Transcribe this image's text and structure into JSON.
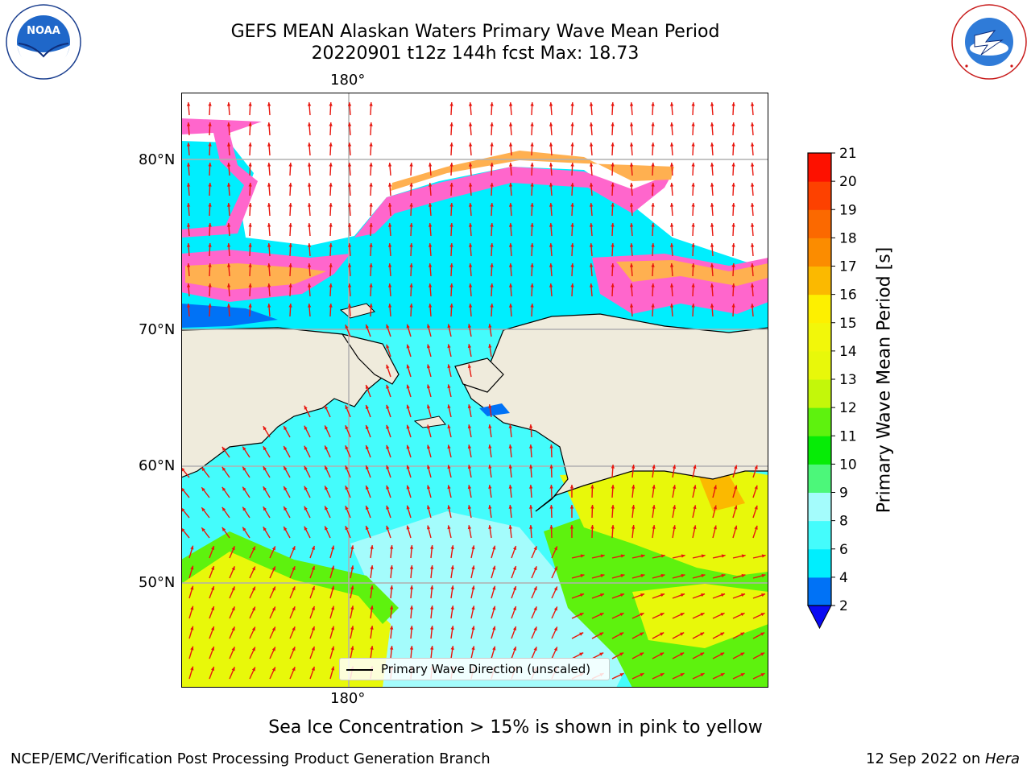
{
  "title": {
    "line1": "GEFS MEAN Alaskan Waters Primary Wave Mean Period",
    "line2": "20220901 t12z 144h fcst   Max: 18.73"
  },
  "logos": {
    "left": {
      "name": "NOAA",
      "ring_text": "NATIONAL OCEANIC AND ATMOSPHERIC ADMINISTRATION",
      "bottom_text": "U.S. DEPARTMENT OF COMMERCE"
    },
    "right": {
      "name": "NATIONAL WEATHER SERVICE"
    }
  },
  "map": {
    "lon_label_top": "180°",
    "lon_label_bottom": "180°",
    "lat_labels": [
      "80°N",
      "70°N",
      "60°N",
      "50°N"
    ],
    "land_color": "#efebdc",
    "vector_color": "#e8150d",
    "legend_text": "Primary Wave Direction (unscaled)"
  },
  "colorbar": {
    "label": "Primary Wave Mean Period [s]",
    "ticks": [
      "2",
      "4",
      "6",
      "8",
      "9",
      "10",
      "11",
      "12",
      "13",
      "14",
      "15",
      "16",
      "17",
      "18",
      "19",
      "20",
      "21"
    ],
    "colors": [
      "#0072f6",
      "#00eefe",
      "#44fcfc",
      "#a4fcfc",
      "#4cf77a",
      "#06ec06",
      "#5ef20e",
      "#c3f70a",
      "#e8f80a",
      "#f2f70a",
      "#fdf000",
      "#fbb900",
      "#fb8c00",
      "#fb6900",
      "#fd4100",
      "#fd1100"
    ],
    "underflow_color": "#0a0af2"
  },
  "caption": "Sea Ice Concentration > 15% is shown in pink to yellow",
  "footer": {
    "left": "NCEP/EMC/Verification Post Processing Product Generation Branch",
    "right_date": "12 Sep 2022 on ",
    "right_host": "Hera"
  }
}
